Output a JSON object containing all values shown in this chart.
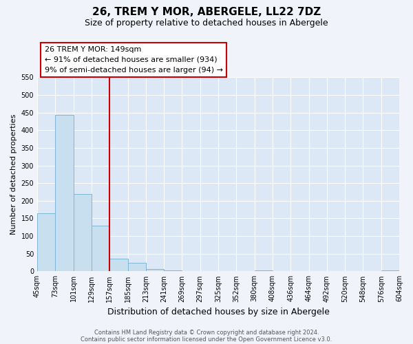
{
  "title": "26, TREM Y MOR, ABERGELE, LL22 7DZ",
  "subtitle": "Size of property relative to detached houses in Abergele",
  "bar_values": [
    165,
    443,
    220,
    130,
    36,
    25,
    7,
    2,
    1,
    0,
    0,
    0,
    2,
    0,
    0,
    0,
    0,
    0,
    0,
    2
  ],
  "bin_labels": [
    "45sqm",
    "73sqm",
    "101sqm",
    "129sqm",
    "157sqm",
    "185sqm",
    "213sqm",
    "241sqm",
    "269sqm",
    "297sqm",
    "325sqm",
    "352sqm",
    "380sqm",
    "408sqm",
    "436sqm",
    "464sqm",
    "492sqm",
    "520sqm",
    "548sqm",
    "576sqm",
    "604sqm"
  ],
  "bar_color": "#c8dff0",
  "bar_edge_color": "#7fb5d5",
  "ylabel": "Number of detached properties",
  "xlabel": "Distribution of detached houses by size in Abergele",
  "ylim": [
    0,
    550
  ],
  "yticks": [
    0,
    50,
    100,
    150,
    200,
    250,
    300,
    350,
    400,
    450,
    500,
    550
  ],
  "vline_color": "#cc0000",
  "annotation_title": "26 TREM Y MOR: 149sqm",
  "annotation_line1": "← 91% of detached houses are smaller (934)",
  "annotation_line2": "9% of semi-detached houses are larger (94) →",
  "annotation_box_color": "#ffffff",
  "annotation_box_edge": "#cc0000",
  "footer_line1": "Contains HM Land Registry data © Crown copyright and database right 2024.",
  "footer_line2": "Contains public sector information licensed under the Open Government Licence v3.0.",
  "background_color": "#dce8f5",
  "plot_bg_color": "#dce8f5",
  "grid_color": "#ffffff",
  "title_fontsize": 11,
  "subtitle_fontsize": 9,
  "tick_fontsize": 7,
  "ylabel_fontsize": 8,
  "xlabel_fontsize": 9
}
